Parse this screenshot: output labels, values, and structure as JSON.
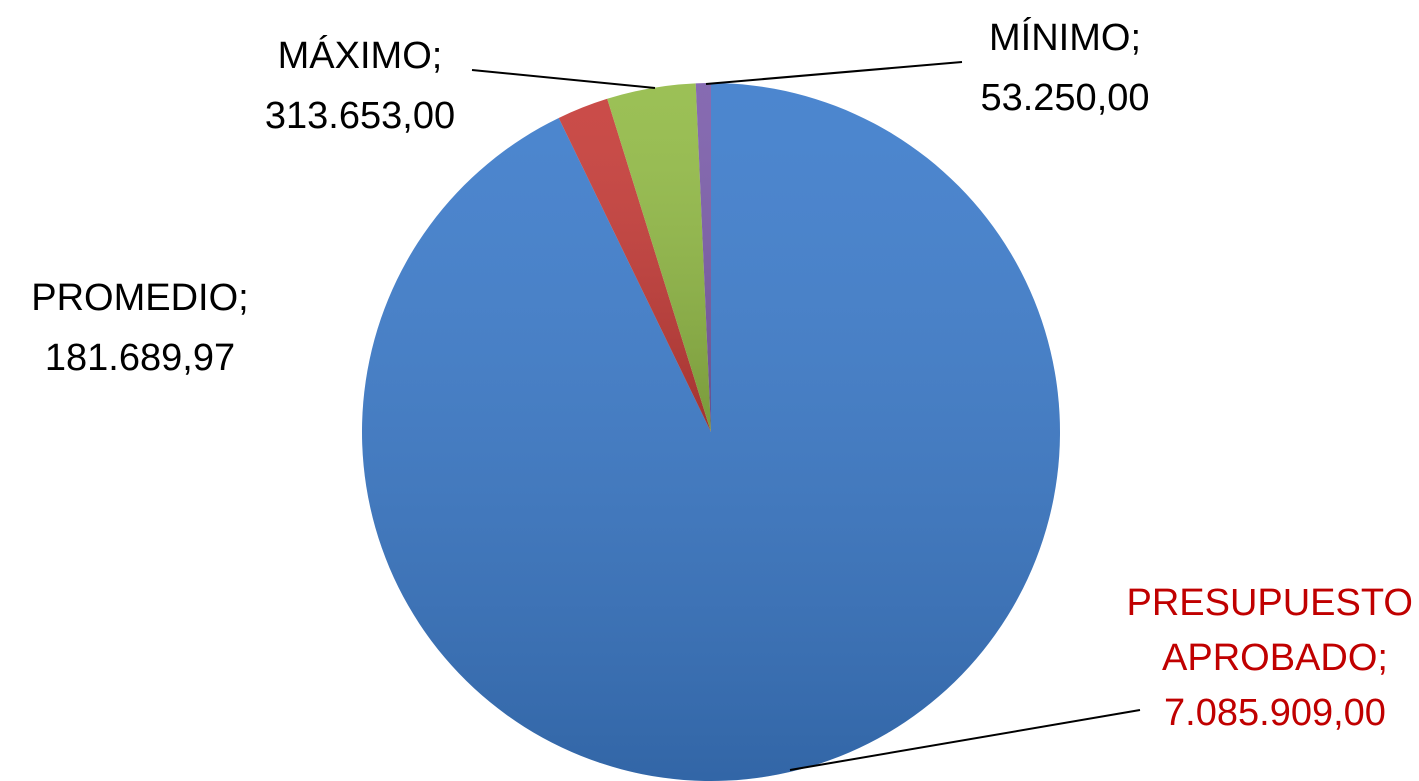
{
  "chart_data": {
    "type": "pie",
    "categories": [
      "PRESUPUESTO APROBADO",
      "PROMEDIO",
      "MÁXIMO",
      "MÍNIMO"
    ],
    "values": [
      7085909,
      181689.97,
      313653,
      53250
    ],
    "value_labels": [
      "7.085.909,00",
      "181.689,97",
      "313.653,00",
      "53.250,00"
    ],
    "label_separator": ";",
    "colors": [
      "#3d7ccb",
      "#c63d39",
      "#93bb47",
      "#7c5eab"
    ],
    "label_colors": [
      "#c00000",
      "#000000",
      "#000000",
      "#000000"
    ]
  }
}
